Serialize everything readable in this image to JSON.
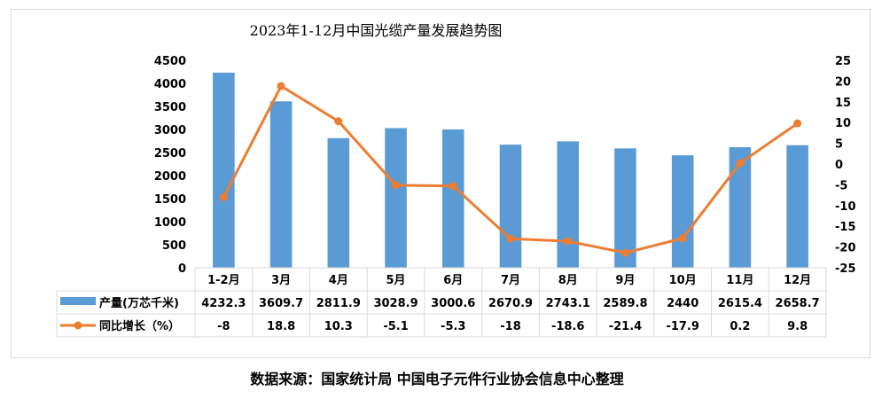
{
  "title": "2023年1-12月中国光缆产量发展趋势图",
  "source": "数据来源：国家统计局    中国电子元件行业协会信息中心整理",
  "chart_data": {
    "type": "bar",
    "title": "2023年1-12月中国光缆产量发展趋势图",
    "categories": [
      "1-2月",
      "3月",
      "4月",
      "5月",
      "6月",
      "7月",
      "8月",
      "9月",
      "10月",
      "11月",
      "12月"
    ],
    "series": [
      {
        "name": "产量(万芯千米)",
        "type": "bar",
        "axis": "left",
        "color": "#5b9bd5",
        "values": [
          4232.3,
          3609.7,
          2811.9,
          3028.9,
          3000.6,
          2670.9,
          2743.1,
          2589.8,
          2440,
          2615.4,
          2658.7
        ],
        "labels": [
          "4232.3",
          "3609.7",
          "2811.9",
          "3028.9",
          "3000.6",
          "2670.9",
          "2743.1",
          "2589.8",
          "2440",
          "2615.4",
          "2658.7"
        ]
      },
      {
        "name": "同比增长（%）",
        "type": "line",
        "axis": "right",
        "color": "#ed7d31",
        "values": [
          -8,
          18.8,
          10.3,
          -5.1,
          -5.3,
          -18,
          -18.6,
          -21.4,
          -17.9,
          0.2,
          9.8
        ],
        "labels": [
          "-8",
          "18.8",
          "10.3",
          "-5.1",
          "-5.3",
          "-18",
          "-18.6",
          "-21.4",
          "-17.9",
          "0.2",
          "9.8"
        ]
      }
    ],
    "y_left": {
      "range": [
        0,
        4500
      ],
      "ticks": [
        "0",
        "500",
        "1000",
        "1500",
        "2000",
        "2500",
        "3000",
        "3500",
        "4000",
        "4500"
      ]
    },
    "y_right": {
      "range": [
        -25,
        25
      ],
      "ticks": [
        "-25",
        "-20",
        "-15",
        "-10",
        "-5",
        "0",
        "5",
        "10",
        "15",
        "20",
        "25"
      ]
    },
    "grid": false,
    "data_table": true
  }
}
